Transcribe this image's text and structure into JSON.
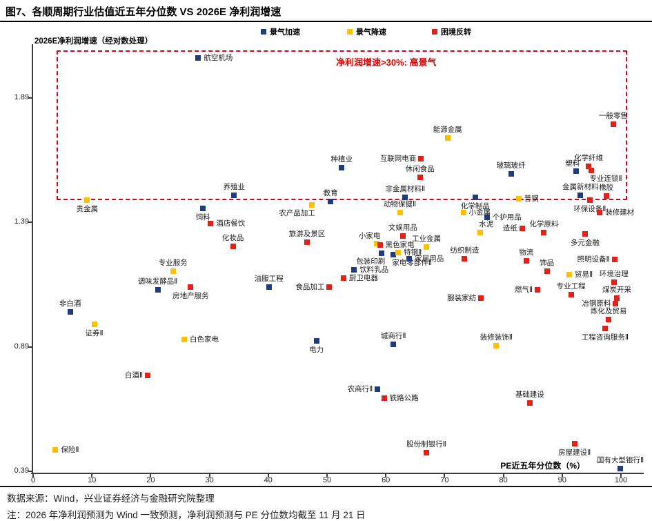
{
  "title": "图7、各顺周期行业估值近五年分位数 VS 2026E 净利润增速",
  "annotation_box": {
    "text": "净利润增速>30%: 高景气",
    "x_range": [
      4.0,
      101.0
    ],
    "y_range": [
      1.48,
      2.081
    ]
  },
  "axes": {
    "y_label": "2026E净利润增速（经对数处理）",
    "x_label": "PE近五年分位数（%）",
    "y_ticks": [
      1.89,
      1.39,
      0.89,
      0.39
    ],
    "x_ticks": [
      0,
      10,
      20,
      30,
      40,
      50,
      60,
      70,
      80,
      90,
      100
    ]
  },
  "footer": {
    "source": "数据来源：Wind，兴业证券经济与金融研究院整理",
    "note": "注：2026 年净利润预测为 Wind 一致预测，净利润预测与 PE 分位数均截至 11 月 21 日"
  },
  "chart_data": {
    "type": "scatter",
    "title": "各顺周期行业估值近五年分位数 VS 2026E 净利润增速",
    "xlabel": "PE近五年分位数（%）",
    "ylabel": "2026E净利润增速（经对数处理）",
    "xlim": [
      0,
      103
    ],
    "ylim": [
      0.39,
      2.12
    ],
    "grid": false,
    "legend_position": "top",
    "series": [
      {
        "name": "景气加速",
        "color": "#1F3D7C",
        "points": [
          {
            "label": "航空机场",
            "x": 28.1,
            "y": 2.05,
            "anchor": "right"
          },
          {
            "label": "种植业",
            "x": 52.5,
            "y": 1.61,
            "anchor": "above"
          },
          {
            "label": "养殖业",
            "x": 34.2,
            "y": 1.5,
            "anchor": "above"
          },
          {
            "label": "教育",
            "x": 50.6,
            "y": 1.475,
            "anchor": "above"
          },
          {
            "label": "非金属材料Ⅱ",
            "x": 63.3,
            "y": 1.49,
            "anchor": "above"
          },
          {
            "label": "化学制品",
            "x": 75.2,
            "y": 1.49,
            "anchor": "below"
          },
          {
            "label": "玻璃玻纤",
            "x": 81.3,
            "y": 1.585,
            "anchor": "above"
          },
          {
            "label": "塑料",
            "x": 92.4,
            "y": 1.595,
            "anchor": "above-left"
          },
          {
            "label": "金属新材料",
            "x": 93.1,
            "y": 1.5,
            "anchor": "above"
          },
          {
            "label": "个护用品",
            "x": 77.2,
            "y": 1.41,
            "anchor": "right"
          },
          {
            "label": "饲料",
            "x": 28.9,
            "y": 1.445,
            "anchor": "below"
          },
          {
            "label": "调味发酵品Ⅱ",
            "x": 21.2,
            "y": 1.12,
            "anchor": "above"
          },
          {
            "label": "非白酒",
            "x": 6.3,
            "y": 1.03,
            "anchor": "above"
          },
          {
            "label": "电力",
            "x": 48.2,
            "y": 0.915,
            "anchor": "below"
          },
          {
            "label": "城商行Ⅱ",
            "x": 61.3,
            "y": 0.9,
            "anchor": "above"
          },
          {
            "label": "农商行Ⅱ",
            "x": 58.6,
            "y": 0.72,
            "anchor": "left"
          },
          {
            "label": "国有大型银行Ⅱ",
            "x": 99.9,
            "y": 0.4,
            "anchor": "above"
          },
          {
            "label": "包装印刷",
            "x": 59.3,
            "y": 1.265,
            "anchor": "below-left"
          },
          {
            "label": "家电零部件Ⅱ",
            "x": 61.3,
            "y": 1.26,
            "anchor": "below-right"
          },
          {
            "label": "家居用品",
            "x": 64.0,
            "y": 1.245,
            "anchor": "right"
          },
          {
            "label": "饮料乳品",
            "x": 54.6,
            "y": 1.2,
            "anchor": "right"
          },
          {
            "label": "油服工程",
            "x": 40.1,
            "y": 1.13,
            "anchor": "above"
          }
        ]
      },
      {
        "name": "景气降速",
        "color": "#FFC000",
        "points": [
          {
            "label": "贵金属",
            "x": 9.2,
            "y": 1.48,
            "anchor": "below"
          },
          {
            "label": "能源金属",
            "x": 70.5,
            "y": 1.73,
            "anchor": "above"
          },
          {
            "label": "农产品加工",
            "x": 47.4,
            "y": 1.46,
            "anchor": "below-left"
          },
          {
            "label": "动物保健Ⅱ",
            "x": 62.4,
            "y": 1.43,
            "anchor": "above"
          },
          {
            "label": "小金属",
            "x": 73.2,
            "y": 1.43,
            "anchor": "right"
          },
          {
            "label": "普钢",
            "x": 82.6,
            "y": 1.485,
            "anchor": "right"
          },
          {
            "label": "水泥",
            "x": 76.1,
            "y": 1.35,
            "anchor": "above-right"
          },
          {
            "label": "工业金属",
            "x": 66.9,
            "y": 1.29,
            "anchor": "above"
          },
          {
            "label": "特钢Ⅱ",
            "x": 62.1,
            "y": 1.27,
            "anchor": "right"
          },
          {
            "label": "小家电",
            "x": 58.5,
            "y": 1.305,
            "anchor": "above-left"
          },
          {
            "label": "专业服务",
            "x": 23.8,
            "y": 1.195,
            "anchor": "above"
          },
          {
            "label": "证券Ⅱ",
            "x": 10.4,
            "y": 0.98,
            "anchor": "below"
          },
          {
            "label": "白色家电",
            "x": 25.7,
            "y": 0.92,
            "anchor": "right"
          },
          {
            "label": "贸易Ⅱ",
            "x": 91.2,
            "y": 1.18,
            "anchor": "right"
          },
          {
            "label": "装修装饰Ⅱ",
            "x": 78.8,
            "y": 0.895,
            "anchor": "above"
          },
          {
            "label": "保险Ⅱ",
            "x": 3.8,
            "y": 0.475,
            "anchor": "right"
          }
        ]
      },
      {
        "name": "困境反转",
        "color": "#E32119",
        "points": [
          {
            "label": "一般零售",
            "x": 98.7,
            "y": 1.785,
            "anchor": "above"
          },
          {
            "label": "互联网电商",
            "x": 66.0,
            "y": 1.645,
            "anchor": "left"
          },
          {
            "label": "休闲食品",
            "x": 65.8,
            "y": 1.57,
            "anchor": "above"
          },
          {
            "label": "化学纤维",
            "x": 94.5,
            "y": 1.615,
            "anchor": "above"
          },
          {
            "label": "专业连锁Ⅱ",
            "x": 94.9,
            "y": 1.6,
            "anchor": "below-right"
          },
          {
            "label": "橡胶",
            "x": 97.5,
            "y": 1.495,
            "anchor": "above"
          },
          {
            "label": "环保设备Ⅱ",
            "x": 94.7,
            "y": 1.48,
            "anchor": "below"
          },
          {
            "label": "装修建材",
            "x": 96.4,
            "y": 1.43,
            "anchor": "right"
          },
          {
            "label": "酒店餐饮",
            "x": 30.2,
            "y": 1.385,
            "anchor": "right"
          },
          {
            "label": "化妆品",
            "x": 34.0,
            "y": 1.295,
            "anchor": "above"
          },
          {
            "label": "旅游及景区",
            "x": 46.6,
            "y": 1.31,
            "anchor": "above"
          },
          {
            "label": "文娱用品",
            "x": 62.9,
            "y": 1.335,
            "anchor": "above"
          },
          {
            "label": "黑色家电",
            "x": 59.0,
            "y": 1.3,
            "anchor": "right"
          },
          {
            "label": "造纸",
            "x": 83.2,
            "y": 1.365,
            "anchor": "left"
          },
          {
            "label": "化学原料",
            "x": 86.9,
            "y": 1.35,
            "anchor": "above"
          },
          {
            "label": "多元金融",
            "x": 93.9,
            "y": 1.345,
            "anchor": "below"
          },
          {
            "label": "物流",
            "x": 83.9,
            "y": 1.235,
            "anchor": "above"
          },
          {
            "label": "饰品",
            "x": 87.4,
            "y": 1.195,
            "anchor": "above"
          },
          {
            "label": "照明设备Ⅱ",
            "x": 98.9,
            "y": 1.24,
            "anchor": "left"
          },
          {
            "label": "环境治理",
            "x": 98.8,
            "y": 1.15,
            "anchor": "above"
          },
          {
            "label": "燃气Ⅱ",
            "x": 85.8,
            "y": 1.12,
            "anchor": "left"
          },
          {
            "label": "专业工程",
            "x": 91.5,
            "y": 1.1,
            "anchor": "above"
          },
          {
            "label": "煤炭开采",
            "x": 99.3,
            "y": 1.085,
            "anchor": "above"
          },
          {
            "label": "冶钢原料",
            "x": 99.1,
            "y": 1.065,
            "anchor": "left"
          },
          {
            "label": "炼化及贸易",
            "x": 97.9,
            "y": 1.0,
            "anchor": "above"
          },
          {
            "label": "工程咨询服务Ⅱ",
            "x": 97.3,
            "y": 0.965,
            "anchor": "below"
          },
          {
            "label": "纺织制造",
            "x": 73.4,
            "y": 1.245,
            "anchor": "above"
          },
          {
            "label": "服装家纺",
            "x": 76.2,
            "y": 1.085,
            "anchor": "left"
          },
          {
            "label": "厨卫电器",
            "x": 52.8,
            "y": 1.165,
            "anchor": "right"
          },
          {
            "label": "食品加工",
            "x": 50.4,
            "y": 1.13,
            "anchor": "left"
          },
          {
            "label": "房地产服务",
            "x": 26.8,
            "y": 1.13,
            "anchor": "below"
          },
          {
            "label": "白酒Ⅱ",
            "x": 19.5,
            "y": 0.775,
            "anchor": "left"
          },
          {
            "label": "铁路公路",
            "x": 59.7,
            "y": 0.685,
            "anchor": "right"
          },
          {
            "label": "股份制银行Ⅱ",
            "x": 66.9,
            "y": 0.465,
            "anchor": "above"
          },
          {
            "label": "基础建设",
            "x": 84.5,
            "y": 0.665,
            "anchor": "above"
          },
          {
            "label": "房屋建设Ⅱ",
            "x": 92.1,
            "y": 0.5,
            "anchor": "below"
          }
        ]
      }
    ]
  }
}
